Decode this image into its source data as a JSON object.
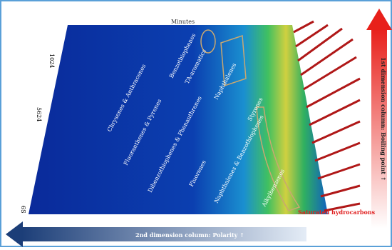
{
  "axes": {
    "top": "Minutes",
    "left_ticks": [
      "1024",
      "5624",
      "6S"
    ],
    "bottom": "2nd dimension column: Polarity ↑",
    "right": "1st dimension column: Boiling point ↑"
  },
  "labels": [
    "Chrysenes & Anthracenes",
    "Benzothiophenes",
    "Fluoranthenes & Pyrenes",
    "TA-aromatics",
    "Dibenzothiophenes & Phenanthrenes",
    "Naphthalenes",
    "Fluorenes",
    "Naphthalenes & Benzothiophenes",
    "Styrenes",
    "Alkylbenzenes",
    "Saturated hydrocarbons"
  ]
}
